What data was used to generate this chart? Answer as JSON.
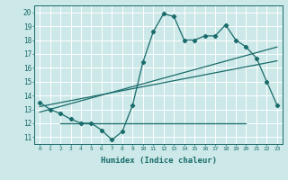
{
  "title": "",
  "xlabel": "Humidex (Indice chaleur)",
  "ylabel": "",
  "bg_color": "#cce8e8",
  "grid_color": "#ffffff",
  "line_color": "#1a6b6b",
  "xlim": [
    -0.5,
    23.5
  ],
  "ylim": [
    10.5,
    20.5
  ],
  "xticks": [
    0,
    1,
    2,
    3,
    4,
    5,
    6,
    7,
    8,
    9,
    10,
    11,
    12,
    13,
    14,
    15,
    16,
    17,
    18,
    19,
    20,
    21,
    22,
    23
  ],
  "yticks": [
    11,
    12,
    13,
    14,
    15,
    16,
    17,
    18,
    19,
    20
  ],
  "main_x": [
    0,
    1,
    2,
    3,
    4,
    5,
    6,
    7,
    8,
    9,
    10,
    11,
    12,
    13,
    14,
    15,
    16,
    17,
    18,
    19,
    20,
    21,
    22,
    23
  ],
  "main_y": [
    13.5,
    13.0,
    12.7,
    12.3,
    12.0,
    12.0,
    11.5,
    10.8,
    11.4,
    13.3,
    16.4,
    18.6,
    19.9,
    19.7,
    18.0,
    18.0,
    18.3,
    18.3,
    19.1,
    18.0,
    17.5,
    16.7,
    15.0,
    13.3
  ],
  "trend1_x": [
    0,
    23
  ],
  "trend1_y": [
    12.8,
    17.5
  ],
  "trend2_x": [
    0,
    23
  ],
  "trend2_y": [
    13.2,
    16.5
  ],
  "hline_x": [
    2,
    20
  ],
  "hline_y": [
    12.0,
    12.0
  ],
  "main_marker": "D",
  "marker_size": 2.2,
  "line_width": 0.9
}
